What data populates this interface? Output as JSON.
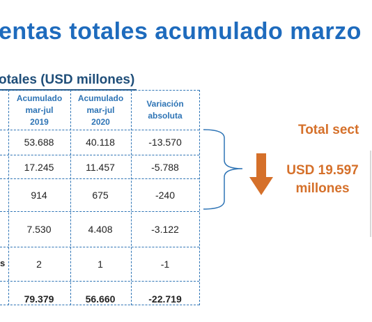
{
  "title": "entas totales acumulado marzo",
  "table": {
    "caption": "otales (USD millones)",
    "headers": [
      [
        "Acumulado",
        "mar-jul",
        "2019"
      ],
      [
        "Acumulado",
        "mar-jul",
        "2020"
      ],
      [
        "Variación",
        "absoluta"
      ]
    ],
    "rows": [
      {
        "label": "",
        "values": [
          "53.688",
          "40.118",
          "-13.570"
        ],
        "bold": false
      },
      {
        "label": "",
        "values": [
          "17.245",
          "11.457",
          "-5.788"
        ],
        "bold": false
      },
      {
        "label": "",
        "values": [
          "914",
          "675",
          "-240"
        ],
        "bold": false
      },
      {
        "label": "",
        "values": [
          "7.530",
          "4.408",
          "-3.122"
        ],
        "bold": false
      },
      {
        "label": "s",
        "values": [
          "2",
          "1",
          "-1"
        ],
        "bold": false
      },
      {
        "label": "",
        "values": [
          "79.379",
          "56.660",
          "-22.719"
        ],
        "bold": true
      }
    ]
  },
  "callout": {
    "label": "Total sect",
    "amount_line1": "USD 19.597",
    "amount_line2": "millones",
    "arrow_icon": "down-arrow-icon",
    "color": "#d5702a"
  },
  "colors": {
    "title": "#1e6bbd",
    "header": "#2e74b5",
    "caption": "#1f4e79",
    "accent": "#d5702a"
  }
}
